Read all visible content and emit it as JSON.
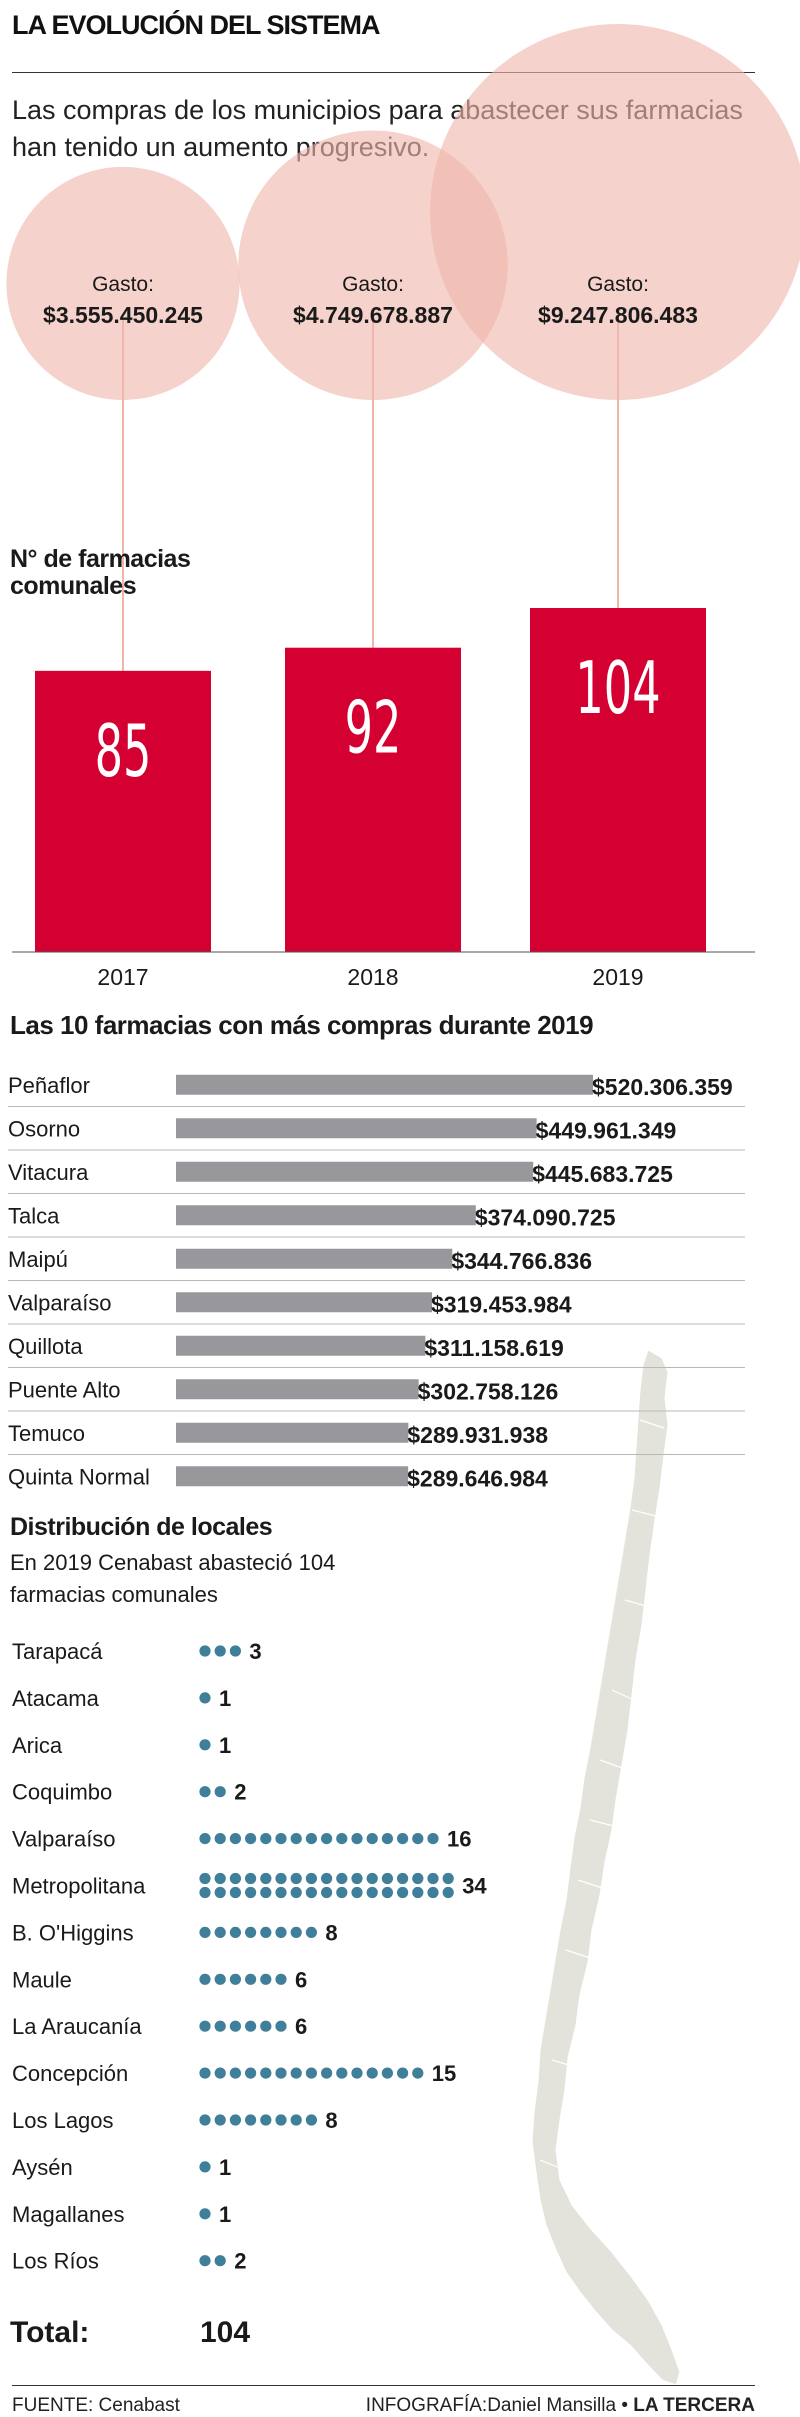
{
  "header": {
    "title": "LA EVOLUCIÓN DEL SISTEMA",
    "intro": "Las compras de los municipios para abastecer sus farmacias han tenido un aumento progresivo."
  },
  "colors": {
    "circle": "#efb7ab",
    "bar_red": "#d50032",
    "bar_gray": "#98989c",
    "dot_blue": "#3f7f99",
    "map": "#e3e3dc"
  },
  "spending": {
    "label": "Gasto:",
    "items": [
      {
        "year": "2017",
        "amount": "$3.555.450.245",
        "value": 3555450245
      },
      {
        "year": "2018",
        "amount": "$4.749.678.887",
        "value": 4749678887
      },
      {
        "year": "2019",
        "amount": "$9.247.806.483",
        "value": 9247806483
      }
    ]
  },
  "chart_data": [
    {
      "type": "bar",
      "title": "N° de farmacias comunales",
      "categories": [
        "2017",
        "2018",
        "2019"
      ],
      "values": [
        85,
        92,
        104
      ]
    },
    {
      "type": "bar",
      "orientation": "horizontal",
      "title": "Las 10 farmacias con más compras durante 2019",
      "categories": [
        "Peñaflor",
        "Osorno",
        "Vitacura",
        "Talca",
        "Maipú",
        "Valparaíso",
        "Quillota",
        "Puente Alto",
        "Temuco",
        "Quinta Normal"
      ],
      "values": [
        520306359,
        449961349,
        445683725,
        374090725,
        344766836,
        319453984,
        311158619,
        302758126,
        289931938,
        289646984
      ],
      "labels": [
        "$520.306.359",
        "$449.961.349",
        "$445.683.725",
        "$374.090.725",
        "$344.766.836",
        "$319.453.984",
        "$311.158.619",
        "$302.758.126",
        "$289.931.938",
        "$289.646.984"
      ]
    },
    {
      "type": "dot",
      "title": "Distribución de locales",
      "subtitle": "En 2019 Cenabast abasteció 104 farmacias comunales",
      "categories": [
        "Tarapacá",
        "Atacama",
        "Arica",
        "Coquimbo",
        "Valparaíso",
        "Metropolitana",
        "B. O'Higgins",
        "Maule",
        "La Araucanía",
        "Concepción",
        "Los Lagos",
        "Aysén",
        "Magallanes",
        "Los Ríos"
      ],
      "values": [
        3,
        1,
        1,
        2,
        16,
        34,
        8,
        6,
        6,
        15,
        8,
        1,
        1,
        2
      ]
    }
  ],
  "total": {
    "label": "Total:",
    "value": "104"
  },
  "footer": {
    "source": "FUENTE: Cenabast",
    "credit": "INFOGRAFÍA:Daniel Mansilla",
    "separator": "•",
    "brand": "LA TERCERA"
  }
}
